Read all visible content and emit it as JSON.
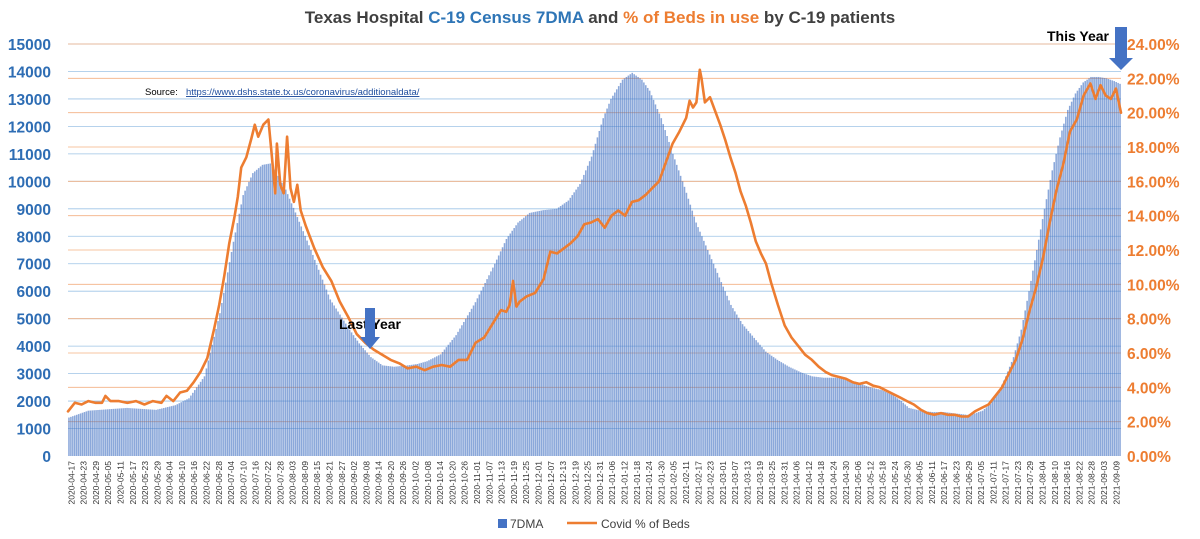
{
  "chart_data": {
    "type": "bar+line",
    "title": {
      "prefix": "Texas Hospital ",
      "part1": "C-19 Census 7DMA",
      "mid": " and ",
      "part2": "% of Beds in use",
      "suffix": " by C-19 patients"
    },
    "source_label": "Source:",
    "source_url": "https://www.dshs.state.tx.us/coronavirus/additionaldata/",
    "annotations": {
      "last_year": "Last Year",
      "this_year": "This Year"
    },
    "left_axis": {
      "ylim": [
        0,
        15000
      ],
      "ticks": [
        "0",
        "1000",
        "2000",
        "3000",
        "4000",
        "5000",
        "6000",
        "7000",
        "8000",
        "9000",
        "10000",
        "11000",
        "12000",
        "13000",
        "14000",
        "15000"
      ]
    },
    "right_axis": {
      "ylim": [
        0,
        24
      ],
      "ticks": [
        "0.00%",
        "2.00%",
        "4.00%",
        "6.00%",
        "8.00%",
        "10.00%",
        "12.00%",
        "14.00%",
        "16.00%",
        "18.00%",
        "20.00%",
        "22.00%",
        "24.00%"
      ]
    },
    "x_tick_labels": [
      "2020-04-17",
      "2020-04-23",
      "2020-04-29",
      "2020-05-05",
      "2020-05-11",
      "2020-05-17",
      "2020-05-23",
      "2020-05-29",
      "2020-06-04",
      "2020-06-10",
      "2020-06-16",
      "2020-06-22",
      "2020-06-28",
      "2020-07-04",
      "2020-07-10",
      "2020-07-16",
      "2020-07-22",
      "2020-07-28",
      "2020-08-03",
      "2020-08-09",
      "2020-08-15",
      "2020-08-21",
      "2020-08-27",
      "2020-09-02",
      "2020-09-08",
      "2020-09-14",
      "2020-09-20",
      "2020-09-26",
      "2020-10-02",
      "2020-10-08",
      "2020-10-14",
      "2020-10-20",
      "2020-10-26",
      "2020-11-01",
      "2020-11-07",
      "2020-11-13",
      "2020-11-19",
      "2020-11-25",
      "2020-12-01",
      "2020-12-07",
      "2020-12-13",
      "2020-12-19",
      "2020-12-25",
      "2020-12-31",
      "2021-01-06",
      "2021-01-12",
      "2021-01-18",
      "2021-01-24",
      "2021-01-30",
      "2021-02-05",
      "2021-02-11",
      "2021-02-17",
      "2021-02-23",
      "2021-03-01",
      "2021-03-07",
      "2021-03-13",
      "2021-03-19",
      "2021-03-25",
      "2021-03-31",
      "2021-04-06",
      "2021-04-12",
      "2021-04-18",
      "2021-04-24",
      "2021-04-30",
      "2021-05-06",
      "2021-05-12",
      "2021-05-18",
      "2021-05-24",
      "2021-05-30",
      "2021-06-05",
      "2021-06-11",
      "2021-06-17",
      "2021-06-23",
      "2021-06-29",
      "2021-07-05",
      "2021-07-11",
      "2021-07-17",
      "2021-07-23",
      "2021-07-29",
      "2021-08-04",
      "2021-08-10",
      "2021-08-16",
      "2021-08-22",
      "2021-08-28",
      "2021-09-03",
      "2021-09-09"
    ],
    "series": [
      {
        "name": "7DMA",
        "type": "bar",
        "axis": "left",
        "color": "#4472c4",
        "keypoints": [
          [
            0,
            1400
          ],
          [
            10,
            1650
          ],
          [
            30,
            1750
          ],
          [
            45,
            1680
          ],
          [
            55,
            1850
          ],
          [
            62,
            2100
          ],
          [
            70,
            2900
          ],
          [
            78,
            5200
          ],
          [
            85,
            7800
          ],
          [
            90,
            9500
          ],
          [
            95,
            10300
          ],
          [
            100,
            10600
          ],
          [
            104,
            10650
          ],
          [
            108,
            10200
          ],
          [
            112,
            9700
          ],
          [
            118,
            8700
          ],
          [
            125,
            7500
          ],
          [
            135,
            5700
          ],
          [
            145,
            4600
          ],
          [
            150,
            4100
          ],
          [
            156,
            3600
          ],
          [
            162,
            3300
          ],
          [
            168,
            3250
          ],
          [
            175,
            3300
          ],
          [
            180,
            3350
          ],
          [
            185,
            3450
          ],
          [
            192,
            3700
          ],
          [
            200,
            4400
          ],
          [
            210,
            5600
          ],
          [
            220,
            7000
          ],
          [
            226,
            7900
          ],
          [
            232,
            8500
          ],
          [
            238,
            8850
          ],
          [
            245,
            8950
          ],
          [
            252,
            9000
          ],
          [
            258,
            9300
          ],
          [
            264,
            9900
          ],
          [
            270,
            10900
          ],
          [
            276,
            12300
          ],
          [
            280,
            13000
          ],
          [
            286,
            13700
          ],
          [
            291,
            13950
          ],
          [
            296,
            13700
          ],
          [
            300,
            13300
          ],
          [
            306,
            12300
          ],
          [
            312,
            11000
          ],
          [
            318,
            9800
          ],
          [
            324,
            8500
          ],
          [
            330,
            7500
          ],
          [
            336,
            6500
          ],
          [
            342,
            5500
          ],
          [
            348,
            4800
          ],
          [
            354,
            4300
          ],
          [
            360,
            3800
          ],
          [
            366,
            3500
          ],
          [
            372,
            3250
          ],
          [
            378,
            3050
          ],
          [
            384,
            2900
          ],
          [
            390,
            2850
          ],
          [
            396,
            2850
          ],
          [
            402,
            2800
          ],
          [
            408,
            2650
          ],
          [
            414,
            2500
          ],
          [
            420,
            2400
          ],
          [
            426,
            2200
          ],
          [
            430,
            2000
          ],
          [
            434,
            1750
          ],
          [
            440,
            1650
          ],
          [
            446,
            1600
          ],
          [
            452,
            1600
          ],
          [
            458,
            1550
          ],
          [
            464,
            1500
          ],
          [
            468,
            1550
          ],
          [
            472,
            1650
          ],
          [
            476,
            1900
          ],
          [
            480,
            2300
          ],
          [
            484,
            2900
          ],
          [
            488,
            3600
          ],
          [
            492,
            4600
          ],
          [
            496,
            6000
          ],
          [
            500,
            7500
          ],
          [
            504,
            9000
          ],
          [
            508,
            10400
          ],
          [
            512,
            11600
          ],
          [
            516,
            12600
          ],
          [
            520,
            13200
          ],
          [
            524,
            13600
          ],
          [
            528,
            13800
          ],
          [
            532,
            13800
          ],
          [
            536,
            13750
          ],
          [
            540,
            13650
          ],
          [
            543,
            13550
          ]
        ]
      },
      {
        "name": "Covid % of Beds",
        "type": "line",
        "axis": "right",
        "color": "#ed7d31",
        "keypoints": [
          [
            0,
            2.6
          ],
          [
            4,
            3.1
          ],
          [
            8,
            3.0
          ],
          [
            12,
            3.2
          ],
          [
            16,
            3.1
          ],
          [
            20,
            3.1
          ],
          [
            22,
            3.5
          ],
          [
            25,
            3.2
          ],
          [
            30,
            3.2
          ],
          [
            35,
            3.1
          ],
          [
            40,
            3.2
          ],
          [
            45,
            3.0
          ],
          [
            50,
            3.2
          ],
          [
            55,
            3.1
          ],
          [
            58,
            3.5
          ],
          [
            62,
            3.2
          ],
          [
            66,
            3.7
          ],
          [
            70,
            3.8
          ],
          [
            74,
            4.3
          ],
          [
            78,
            4.9
          ],
          [
            82,
            5.7
          ],
          [
            86,
            7.4
          ],
          [
            89,
            8.8
          ],
          [
            92,
            10.5
          ],
          [
            95,
            12.4
          ],
          [
            98,
            13.9
          ],
          [
            100,
            15.1
          ],
          [
            102,
            16.8
          ],
          [
            105,
            17.4
          ],
          [
            108,
            18.5
          ],
          [
            110,
            19.3
          ],
          [
            112,
            18.6
          ],
          [
            115,
            19.3
          ],
          [
            118,
            19.6
          ],
          [
            120,
            17.5
          ],
          [
            122,
            15.3
          ],
          [
            123,
            18.2
          ],
          [
            125,
            15.8
          ],
          [
            127,
            15.3
          ],
          [
            129,
            18.6
          ],
          [
            131,
            15.6
          ],
          [
            133,
            14.8
          ],
          [
            135,
            15.8
          ],
          [
            137,
            14.3
          ],
          [
            140,
            13.4
          ],
          [
            145,
            12.1
          ],
          [
            150,
            11.0
          ],
          [
            155,
            10.2
          ],
          [
            160,
            9.0
          ],
          [
            165,
            8.1
          ],
          [
            170,
            7.1
          ],
          [
            175,
            6.6
          ],
          [
            180,
            6.2
          ],
          [
            185,
            5.9
          ],
          [
            190,
            5.6
          ],
          [
            195,
            5.4
          ],
          [
            200,
            5.1
          ],
          [
            205,
            5.2
          ],
          [
            210,
            5.0
          ],
          [
            215,
            5.2
          ],
          [
            220,
            5.3
          ],
          [
            225,
            5.2
          ],
          [
            230,
            5.6
          ],
          [
            235,
            5.6
          ],
          [
            240,
            6.6
          ],
          [
            245,
            6.9
          ],
          [
            250,
            7.7
          ],
          [
            255,
            8.5
          ],
          [
            258,
            8.4
          ],
          [
            260,
            8.8
          ],
          [
            262,
            10.2
          ],
          [
            264,
            8.7
          ],
          [
            266,
            9.0
          ],
          [
            270,
            9.3
          ],
          [
            275,
            9.5
          ],
          [
            280,
            10.3
          ],
          [
            284,
            11.9
          ],
          [
            288,
            11.8
          ],
          [
            292,
            12.1
          ],
          [
            296,
            12.4
          ],
          [
            300,
            12.8
          ],
          [
            304,
            13.5
          ],
          [
            308,
            13.6
          ],
          [
            312,
            13.8
          ],
          [
            316,
            13.3
          ],
          [
            320,
            14.0
          ],
          [
            324,
            14.3
          ],
          [
            328,
            14.0
          ],
          [
            332,
            14.8
          ],
          [
            336,
            14.9
          ],
          [
            340,
            15.2
          ],
          [
            344,
            15.6
          ],
          [
            348,
            16.0
          ],
          [
            352,
            17.1
          ],
          [
            356,
            18.2
          ],
          [
            360,
            18.9
          ],
          [
            364,
            19.7
          ],
          [
            366,
            20.7
          ],
          [
            368,
            20.3
          ],
          [
            370,
            20.6
          ],
          [
            372,
            22.5
          ],
          [
            373,
            22.0
          ],
          [
            375,
            20.6
          ],
          [
            378,
            20.9
          ],
          [
            381,
            20.1
          ],
          [
            384,
            19.3
          ],
          [
            387,
            18.4
          ],
          [
            390,
            17.4
          ],
          [
            393,
            16.5
          ],
          [
            396,
            15.4
          ],
          [
            399,
            14.6
          ],
          [
            402,
            13.6
          ],
          [
            405,
            12.5
          ],
          [
            408,
            11.8
          ],
          [
            411,
            11.2
          ],
          [
            414,
            10.1
          ],
          [
            418,
            8.8
          ],
          [
            422,
            7.6
          ],
          [
            426,
            6.9
          ],
          [
            430,
            6.4
          ],
          [
            434,
            5.9
          ],
          [
            438,
            5.6
          ],
          [
            442,
            5.2
          ],
          [
            446,
            4.9
          ],
          [
            450,
            4.7
          ],
          [
            454,
            4.6
          ],
          [
            458,
            4.5
          ],
          [
            462,
            4.3
          ],
          [
            466,
            4.2
          ],
          [
            470,
            4.3
          ],
          [
            474,
            4.1
          ],
          [
            478,
            4.0
          ],
          [
            482,
            3.8
          ],
          [
            486,
            3.6
          ],
          [
            490,
            3.4
          ],
          [
            494,
            3.2
          ],
          [
            498,
            3.0
          ],
          [
            502,
            2.7
          ],
          [
            506,
            2.5
          ],
          [
            510,
            2.4
          ],
          [
            514,
            2.5
          ],
          [
            518,
            2.4
          ],
          [
            522,
            2.4
          ],
          [
            526,
            2.3
          ],
          [
            530,
            2.3
          ],
          [
            534,
            2.6
          ],
          [
            538,
            2.8
          ],
          [
            542,
            3.0
          ],
          [
            546,
            3.5
          ],
          [
            550,
            4.0
          ],
          [
            554,
            4.8
          ],
          [
            558,
            5.6
          ],
          [
            562,
            6.8
          ],
          [
            566,
            8.4
          ],
          [
            570,
            9.8
          ],
          [
            574,
            11.5
          ],
          [
            578,
            13.6
          ],
          [
            582,
            15.5
          ],
          [
            586,
            17.0
          ],
          [
            590,
            18.9
          ],
          [
            594,
            19.6
          ],
          [
            598,
            21.0
          ],
          [
            602,
            21.7
          ],
          [
            605,
            20.8
          ],
          [
            608,
            21.6
          ],
          [
            611,
            21.0
          ],
          [
            614,
            20.8
          ],
          [
            617,
            21.4
          ],
          [
            620,
            20.0
          ]
        ]
      }
    ],
    "legend": [
      "7DMA",
      "Covid % of Beds"
    ],
    "colors": {
      "title_blue": "#2e75b6",
      "title_orange": "#ed7d31",
      "left_axis": "#2e6db4",
      "right_axis": "#ed7d31",
      "arrow": "#4472c4",
      "grid_blue": "#9dc3e6",
      "grid_orange": "#f4b183"
    }
  }
}
